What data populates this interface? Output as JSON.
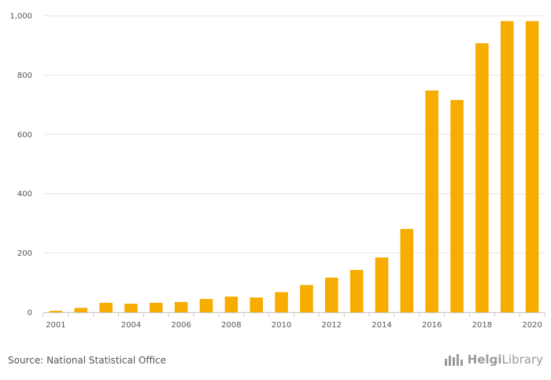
{
  "chart_data": {
    "type": "bar",
    "title": "",
    "xlabel": "",
    "ylabel": "",
    "categories": [
      "2001",
      "2002",
      "2003",
      "2004",
      "2005",
      "2006",
      "2007",
      "2008",
      "2009",
      "2010",
      "2011",
      "2012",
      "2013",
      "2014",
      "2015",
      "2016",
      "2017",
      "2018",
      "2019",
      "2020"
    ],
    "x_tick_labels": [
      "2001",
      "2004",
      "2006",
      "2008",
      "2010",
      "2012",
      "2014",
      "2016",
      "2018",
      "2020"
    ],
    "values": [
      5,
      15,
      32,
      29,
      32,
      35,
      45,
      53,
      50,
      68,
      92,
      117,
      143,
      185,
      281,
      748,
      716,
      907,
      982,
      982
    ],
    "ylim": [
      0,
      1000
    ],
    "y_ticks": [
      0,
      200,
      400,
      600,
      800,
      1000
    ],
    "y_tick_labels": [
      "0",
      "200",
      "400",
      "600",
      "800",
      "1,000"
    ],
    "bar_color": "#F7AC00",
    "grid": true,
    "grid_color": "#e6e6e6"
  },
  "footer": {
    "source": "Source: National Statistical Office",
    "brand_part1": "Helgi",
    "brand_part2": "Library"
  }
}
